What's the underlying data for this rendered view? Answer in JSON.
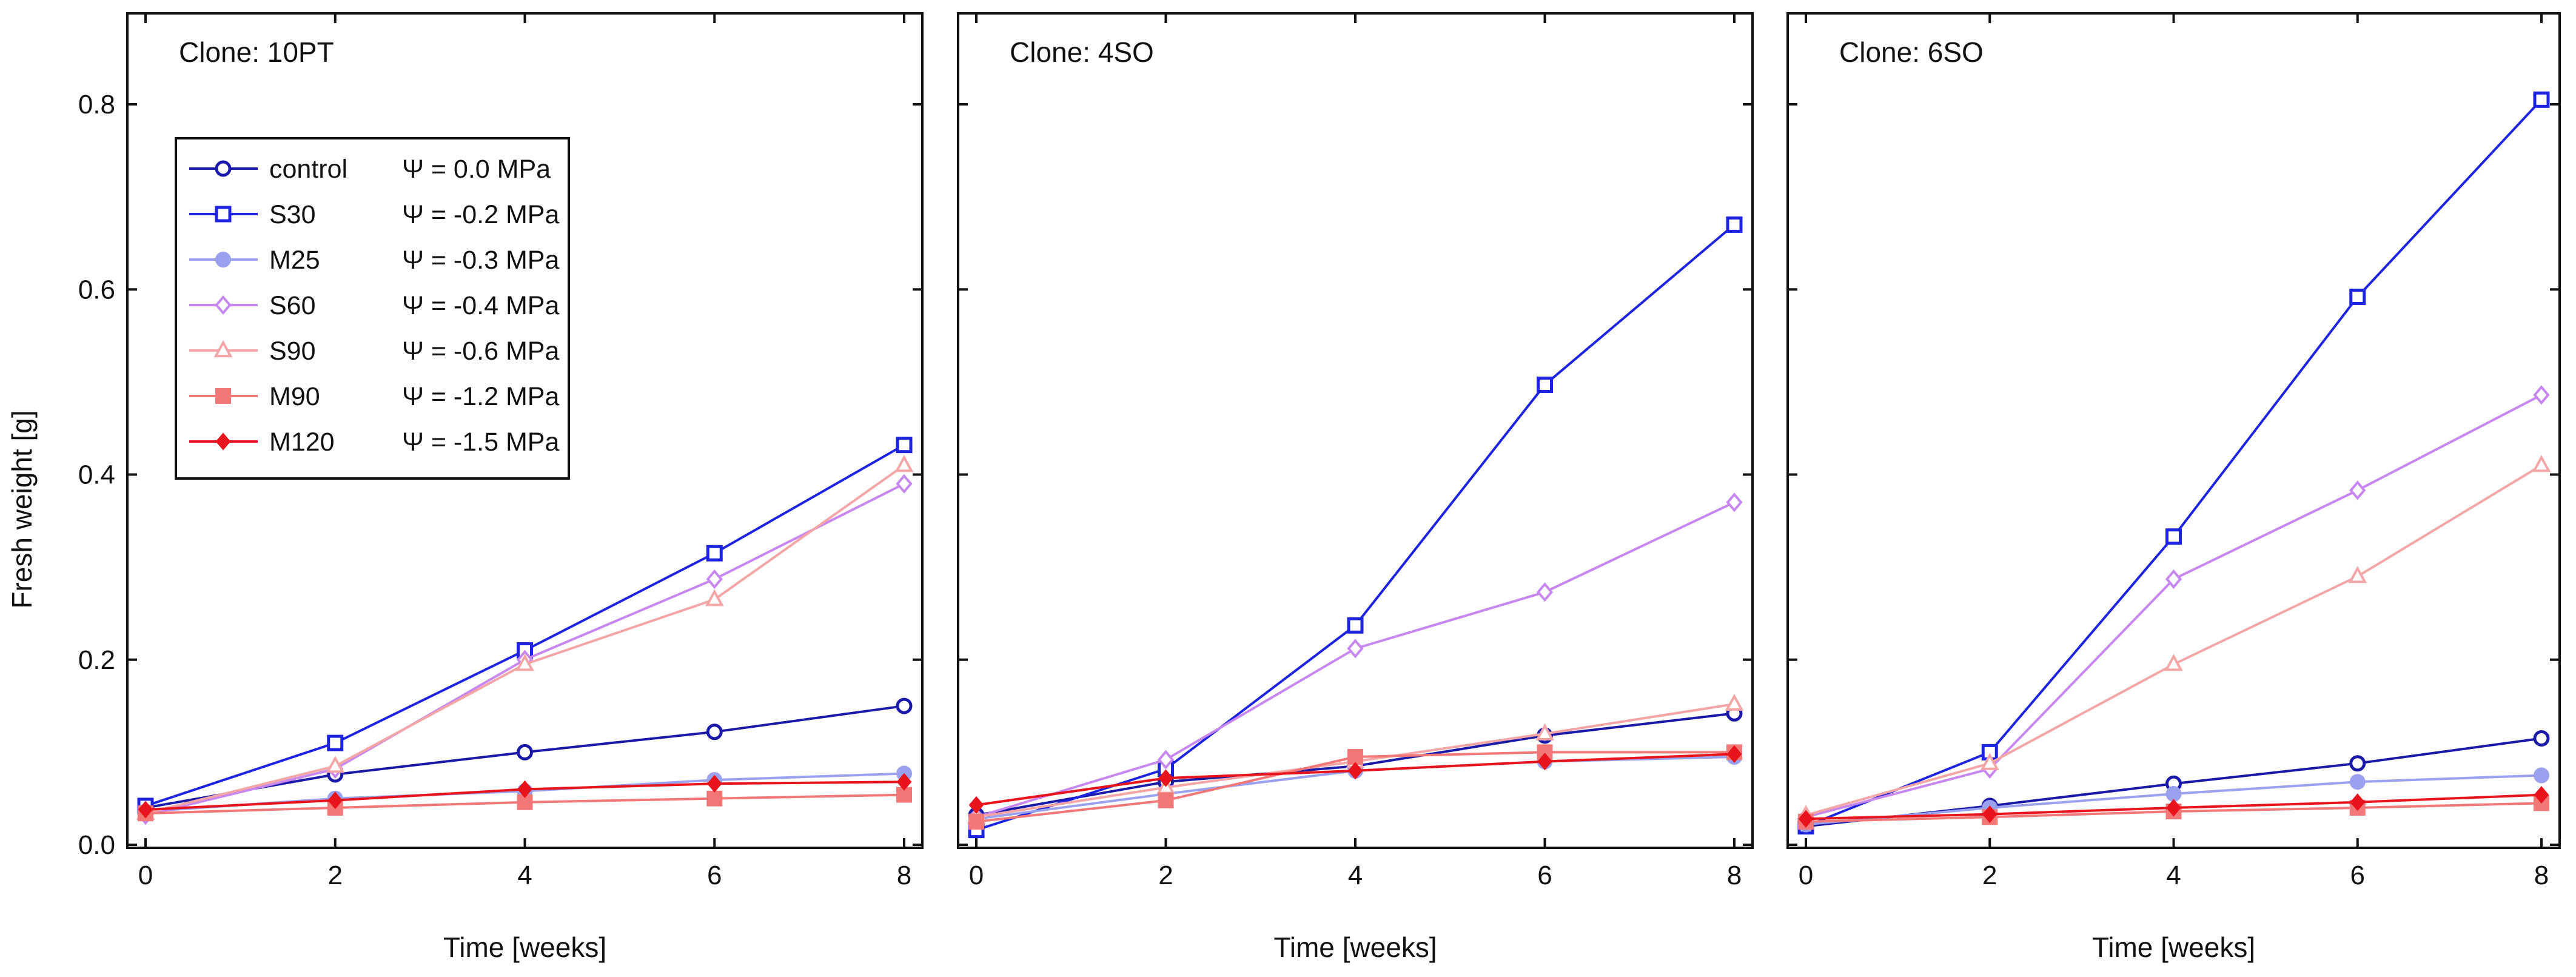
{
  "figure": {
    "ylabel": "Fresh weight [g]",
    "xlabel": "Time [weeks]"
  },
  "chart_data": [
    {
      "type": "line",
      "title": "Clone: 10PT",
      "xlabel": "Time [weeks]",
      "ylabel": "Fresh weight [g]",
      "xlim": [
        0,
        8
      ],
      "ylim": [
        0,
        0.9
      ],
      "x": [
        0,
        2,
        4,
        6,
        8
      ],
      "series": [
        {
          "name": "control",
          "values": [
            0.04,
            0.076,
            0.1,
            0.122,
            0.15
          ]
        },
        {
          "name": "S30",
          "values": [
            0.042,
            0.11,
            0.21,
            0.315,
            0.432
          ]
        },
        {
          "name": "M25",
          "values": [
            0.036,
            0.05,
            0.058,
            0.07,
            0.077
          ]
        },
        {
          "name": "S60",
          "values": [
            0.032,
            0.082,
            0.2,
            0.287,
            0.39
          ]
        },
        {
          "name": "S90",
          "values": [
            0.034,
            0.085,
            0.195,
            0.265,
            0.41
          ]
        },
        {
          "name": "M90",
          "values": [
            0.034,
            0.04,
            0.046,
            0.05,
            0.054
          ]
        },
        {
          "name": "M120",
          "values": [
            0.038,
            0.048,
            0.06,
            0.066,
            0.068
          ]
        }
      ]
    },
    {
      "type": "line",
      "title": "Clone: 4SO",
      "xlabel": "Time [weeks]",
      "ylabel": "Fresh weight [g]",
      "xlim": [
        0,
        8
      ],
      "ylim": [
        0,
        0.9
      ],
      "x": [
        0,
        2,
        4,
        6,
        8
      ],
      "series": [
        {
          "name": "control",
          "values": [
            0.032,
            0.068,
            0.085,
            0.118,
            0.142
          ]
        },
        {
          "name": "S30",
          "values": [
            0.016,
            0.082,
            0.237,
            0.497,
            0.67
          ]
        },
        {
          "name": "M25",
          "values": [
            0.028,
            0.055,
            0.08,
            0.09,
            0.095
          ]
        },
        {
          "name": "S60",
          "values": [
            0.03,
            0.092,
            0.212,
            0.273,
            0.37
          ]
        },
        {
          "name": "S90",
          "values": [
            0.03,
            0.062,
            0.09,
            0.12,
            0.152
          ]
        },
        {
          "name": "M90",
          "values": [
            0.025,
            0.048,
            0.095,
            0.1,
            0.1
          ]
        },
        {
          "name": "M120",
          "values": [
            0.043,
            0.072,
            0.08,
            0.09,
            0.098
          ]
        }
      ]
    },
    {
      "type": "line",
      "title": "Clone: 6SO",
      "xlabel": "Time [weeks]",
      "ylabel": "Fresh weight [g]",
      "xlim": [
        0,
        8
      ],
      "ylim": [
        0,
        0.9
      ],
      "x": [
        0,
        2,
        4,
        6,
        8
      ],
      "series": [
        {
          "name": "control",
          "values": [
            0.02,
            0.042,
            0.066,
            0.088,
            0.115
          ]
        },
        {
          "name": "S30",
          "values": [
            0.02,
            0.1,
            0.333,
            0.592,
            0.805
          ]
        },
        {
          "name": "M25",
          "values": [
            0.022,
            0.04,
            0.055,
            0.068,
            0.075
          ]
        },
        {
          "name": "S60",
          "values": [
            0.03,
            0.082,
            0.287,
            0.383,
            0.486
          ]
        },
        {
          "name": "S90",
          "values": [
            0.032,
            0.088,
            0.195,
            0.29,
            0.41
          ]
        },
        {
          "name": "M90",
          "values": [
            0.025,
            0.03,
            0.036,
            0.04,
            0.045
          ]
        },
        {
          "name": "M120",
          "values": [
            0.028,
            0.033,
            0.04,
            0.046,
            0.054
          ]
        }
      ]
    }
  ],
  "legend": {
    "placement": "upper-left of first panel",
    "entries": [
      {
        "name": "control",
        "label": "control",
        "psi": "Ψ = 0.0 MPa"
      },
      {
        "name": "S30",
        "label": "S30",
        "psi": "Ψ = -0.2 MPa"
      },
      {
        "name": "M25",
        "label": "M25",
        "psi": "Ψ = -0.3 MPa"
      },
      {
        "name": "S60",
        "label": "S60",
        "psi": "Ψ = -0.4 MPa"
      },
      {
        "name": "S90",
        "label": "S90",
        "psi": "Ψ = -0.6 MPa"
      },
      {
        "name": "M90",
        "label": "M90",
        "psi": "Ψ = -1.2 MPa"
      },
      {
        "name": "M120",
        "label": "M120",
        "psi": "Ψ = -1.5 MPa"
      }
    ]
  },
  "styles": {
    "control": {
      "color": "#1a1aa8",
      "marker": "circle-open"
    },
    "S30": {
      "color": "#1c24e0",
      "marker": "square-open"
    },
    "M25": {
      "color": "#9aa2f0",
      "marker": "circle-filled"
    },
    "S60": {
      "color": "#c886f0",
      "marker": "diamond-open"
    },
    "S90": {
      "color": "#f4a6a6",
      "marker": "triangle-open"
    },
    "M90": {
      "color": "#f27878",
      "marker": "square-filled"
    },
    "M120": {
      "color": "#e8141c",
      "marker": "diamond-filled"
    }
  },
  "y_ticks": [
    0.0,
    0.2,
    0.4,
    0.6,
    0.8
  ],
  "y_tick_labels": [
    "0.0",
    "0.2",
    "0.4",
    "0.6",
    "0.8"
  ],
  "x_ticks": [
    0,
    2,
    4,
    6,
    8
  ],
  "x_tick_labels": [
    "0",
    "2",
    "4",
    "6",
    "8"
  ]
}
